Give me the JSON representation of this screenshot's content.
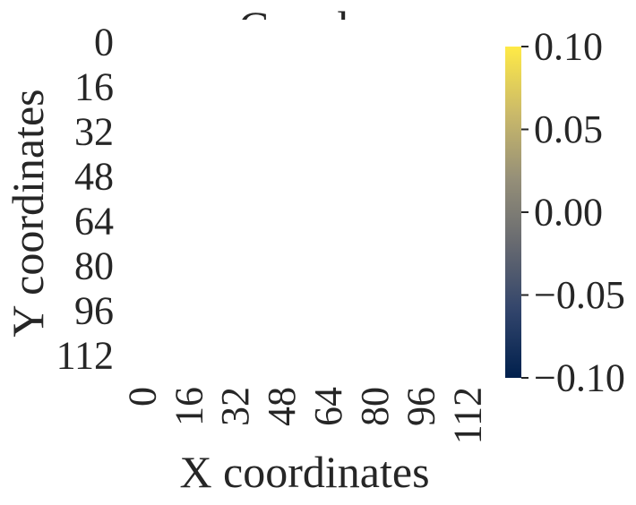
{
  "chart_data": {
    "type": "heatmap",
    "title": "Greedy",
    "xlabel": "X coordinates",
    "ylabel": "Y coordinates",
    "x_ticks": [
      "0",
      "16",
      "32",
      "48",
      "64",
      "80",
      "96",
      "112"
    ],
    "y_ticks": [
      "0",
      "16",
      "32",
      "48",
      "64",
      "80",
      "96",
      "112"
    ],
    "values": [],
    "colorbar": {
      "colormap": "cividis",
      "range": [
        -0.1,
        0.1
      ],
      "ticks": [
        0.1,
        0.05,
        0.0,
        -0.05,
        -0.1
      ],
      "tick_labels": [
        "0.10",
        "0.05",
        "0.00",
        "−0.05",
        "−0.10"
      ]
    },
    "colormap_stops": [
      "#00204d",
      "#31446b",
      "#666970",
      "#958f78",
      "#cbba69",
      "#ffea46"
    ]
  }
}
